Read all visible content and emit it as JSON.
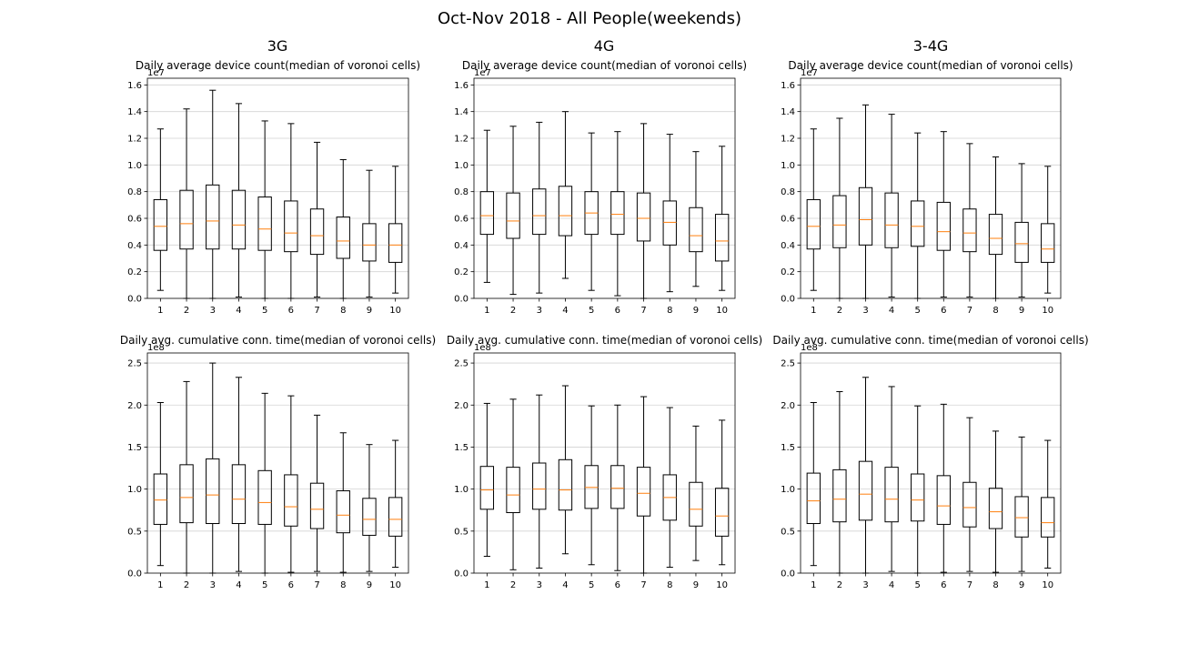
{
  "figure": {
    "title": "Oct-Nov 2018 - All People(weekends)",
    "column_titles": [
      "3G",
      "4G",
      "3-4G"
    ]
  },
  "chart_data": [
    {
      "type": "box",
      "column": "3G",
      "title": "Daily average device count(median of voronoi cells)",
      "offset_label": "1e7",
      "categories": [
        "1",
        "2",
        "3",
        "4",
        "5",
        "6",
        "7",
        "8",
        "9",
        "10"
      ],
      "ylim": [
        0,
        1.65
      ],
      "yticks": [
        "0.0",
        "0.2",
        "0.4",
        "0.6",
        "0.8",
        "1.0",
        "1.2",
        "1.4",
        "1.6"
      ],
      "grid": "y",
      "boxes": [
        {
          "whislo": 0.06,
          "q1": 0.36,
          "med": 0.54,
          "q3": 0.74,
          "whishi": 1.27
        },
        {
          "whislo": 0.0,
          "q1": 0.37,
          "med": 0.56,
          "q3": 0.81,
          "whishi": 1.42
        },
        {
          "whislo": 0.0,
          "q1": 0.37,
          "med": 0.58,
          "q3": 0.85,
          "whishi": 1.56
        },
        {
          "whislo": 0.01,
          "q1": 0.37,
          "med": 0.55,
          "q3": 0.81,
          "whishi": 1.46
        },
        {
          "whislo": 0.0,
          "q1": 0.36,
          "med": 0.52,
          "q3": 0.76,
          "whishi": 1.33
        },
        {
          "whislo": 0.0,
          "q1": 0.35,
          "med": 0.49,
          "q3": 0.73,
          "whishi": 1.31
        },
        {
          "whislo": 0.01,
          "q1": 0.33,
          "med": 0.47,
          "q3": 0.67,
          "whishi": 1.17
        },
        {
          "whislo": 0.0,
          "q1": 0.3,
          "med": 0.43,
          "q3": 0.61,
          "whishi": 1.04
        },
        {
          "whislo": 0.01,
          "q1": 0.28,
          "med": 0.4,
          "q3": 0.56,
          "whishi": 0.96
        },
        {
          "whislo": 0.04,
          "q1": 0.27,
          "med": 0.4,
          "q3": 0.56,
          "whishi": 0.99
        }
      ]
    },
    {
      "type": "box",
      "column": "4G",
      "title": "Daily average device count(median of voronoi cells)",
      "offset_label": "1e7",
      "categories": [
        "1",
        "2",
        "3",
        "4",
        "5",
        "6",
        "7",
        "8",
        "9",
        "10"
      ],
      "ylim": [
        0,
        1.65
      ],
      "yticks": [
        "0.0",
        "0.2",
        "0.4",
        "0.6",
        "0.8",
        "1.0",
        "1.2",
        "1.4",
        "1.6"
      ],
      "grid": "y",
      "boxes": [
        {
          "whislo": 0.12,
          "q1": 0.48,
          "med": 0.62,
          "q3": 0.8,
          "whishi": 1.26
        },
        {
          "whislo": 0.03,
          "q1": 0.45,
          "med": 0.58,
          "q3": 0.79,
          "whishi": 1.29
        },
        {
          "whislo": 0.04,
          "q1": 0.48,
          "med": 0.62,
          "q3": 0.82,
          "whishi": 1.32
        },
        {
          "whislo": 0.15,
          "q1": 0.47,
          "med": 0.62,
          "q3": 0.84,
          "whishi": 1.4
        },
        {
          "whislo": 0.06,
          "q1": 0.48,
          "med": 0.64,
          "q3": 0.8,
          "whishi": 1.24
        },
        {
          "whislo": 0.02,
          "q1": 0.48,
          "med": 0.63,
          "q3": 0.8,
          "whishi": 1.25
        },
        {
          "whislo": 0.0,
          "q1": 0.43,
          "med": 0.6,
          "q3": 0.79,
          "whishi": 1.31
        },
        {
          "whislo": 0.05,
          "q1": 0.4,
          "med": 0.57,
          "q3": 0.73,
          "whishi": 1.23
        },
        {
          "whislo": 0.09,
          "q1": 0.35,
          "med": 0.47,
          "q3": 0.68,
          "whishi": 1.1
        },
        {
          "whislo": 0.06,
          "q1": 0.28,
          "med": 0.43,
          "q3": 0.63,
          "whishi": 1.14
        }
      ]
    },
    {
      "type": "box",
      "column": "3-4G",
      "title": "Daily average device count(median of voronoi cells)",
      "offset_label": "1e7",
      "categories": [
        "1",
        "2",
        "3",
        "4",
        "5",
        "6",
        "7",
        "8",
        "9",
        "10"
      ],
      "ylim": [
        0,
        1.65
      ],
      "yticks": [
        "0.0",
        "0.2",
        "0.4",
        "0.6",
        "0.8",
        "1.0",
        "1.2",
        "1.4",
        "1.6"
      ],
      "grid": "y",
      "boxes": [
        {
          "whislo": 0.06,
          "q1": 0.37,
          "med": 0.54,
          "q3": 0.74,
          "whishi": 1.27
        },
        {
          "whislo": 0.0,
          "q1": 0.38,
          "med": 0.55,
          "q3": 0.77,
          "whishi": 1.35
        },
        {
          "whislo": 0.0,
          "q1": 0.4,
          "med": 0.59,
          "q3": 0.83,
          "whishi": 1.45
        },
        {
          "whislo": 0.01,
          "q1": 0.38,
          "med": 0.55,
          "q3": 0.79,
          "whishi": 1.38
        },
        {
          "whislo": 0.0,
          "q1": 0.39,
          "med": 0.54,
          "q3": 0.73,
          "whishi": 1.24
        },
        {
          "whislo": 0.01,
          "q1": 0.36,
          "med": 0.5,
          "q3": 0.72,
          "whishi": 1.25
        },
        {
          "whislo": 0.01,
          "q1": 0.35,
          "med": 0.49,
          "q3": 0.67,
          "whishi": 1.16
        },
        {
          "whislo": 0.0,
          "q1": 0.33,
          "med": 0.45,
          "q3": 0.63,
          "whishi": 1.06
        },
        {
          "whislo": 0.01,
          "q1": 0.27,
          "med": 0.41,
          "q3": 0.57,
          "whishi": 1.01
        },
        {
          "whislo": 0.04,
          "q1": 0.27,
          "med": 0.37,
          "q3": 0.56,
          "whishi": 0.99
        }
      ]
    },
    {
      "type": "box",
      "column": "3G",
      "title": "Daily avg. cumulative conn. time(median of voronoi cells)",
      "offset_label": "1e8",
      "categories": [
        "1",
        "2",
        "3",
        "4",
        "5",
        "6",
        "7",
        "8",
        "9",
        "10"
      ],
      "ylim": [
        0,
        2.62
      ],
      "yticks": [
        "0.0",
        "0.5",
        "1.0",
        "1.5",
        "2.0",
        "2.5"
      ],
      "grid": "y",
      "boxes": [
        {
          "whislo": 0.09,
          "q1": 0.58,
          "med": 0.87,
          "q3": 1.18,
          "whishi": 2.03
        },
        {
          "whislo": 0.0,
          "q1": 0.6,
          "med": 0.9,
          "q3": 1.29,
          "whishi": 2.28
        },
        {
          "whislo": 0.0,
          "q1": 0.59,
          "med": 0.93,
          "q3": 1.36,
          "whishi": 2.5
        },
        {
          "whislo": 0.02,
          "q1": 0.59,
          "med": 0.88,
          "q3": 1.29,
          "whishi": 2.33
        },
        {
          "whislo": 0.0,
          "q1": 0.58,
          "med": 0.84,
          "q3": 1.22,
          "whishi": 2.14
        },
        {
          "whislo": 0.01,
          "q1": 0.56,
          "med": 0.79,
          "q3": 1.17,
          "whishi": 2.11
        },
        {
          "whislo": 0.02,
          "q1": 0.53,
          "med": 0.76,
          "q3": 1.07,
          "whishi": 1.88
        },
        {
          "whislo": 0.01,
          "q1": 0.48,
          "med": 0.69,
          "q3": 0.98,
          "whishi": 1.67
        },
        {
          "whislo": 0.02,
          "q1": 0.45,
          "med": 0.64,
          "q3": 0.89,
          "whishi": 1.53
        },
        {
          "whislo": 0.07,
          "q1": 0.44,
          "med": 0.64,
          "q3": 0.9,
          "whishi": 1.58
        }
      ]
    },
    {
      "type": "box",
      "column": "4G",
      "title": "Daily avg. cumulative conn. time(median of voronoi cells)",
      "offset_label": "1e8",
      "categories": [
        "1",
        "2",
        "3",
        "4",
        "5",
        "6",
        "7",
        "8",
        "9",
        "10"
      ],
      "ylim": [
        0,
        2.62
      ],
      "yticks": [
        "0.0",
        "0.5",
        "1.0",
        "1.5",
        "2.0",
        "2.5"
      ],
      "grid": "y",
      "boxes": [
        {
          "whislo": 0.2,
          "q1": 0.76,
          "med": 0.99,
          "q3": 1.27,
          "whishi": 2.02
        },
        {
          "whislo": 0.04,
          "q1": 0.72,
          "med": 0.93,
          "q3": 1.26,
          "whishi": 2.07
        },
        {
          "whislo": 0.06,
          "q1": 0.76,
          "med": 1.0,
          "q3": 1.31,
          "whishi": 2.12
        },
        {
          "whislo": 0.23,
          "q1": 0.75,
          "med": 0.99,
          "q3": 1.35,
          "whishi": 2.23
        },
        {
          "whislo": 0.1,
          "q1": 0.77,
          "med": 1.02,
          "q3": 1.28,
          "whishi": 1.99
        },
        {
          "whislo": 0.03,
          "q1": 0.77,
          "med": 1.01,
          "q3": 1.28,
          "whishi": 2.0
        },
        {
          "whislo": 0.0,
          "q1": 0.68,
          "med": 0.95,
          "q3": 1.26,
          "whishi": 2.1
        },
        {
          "whislo": 0.07,
          "q1": 0.63,
          "med": 0.9,
          "q3": 1.17,
          "whishi": 1.97
        },
        {
          "whislo": 0.15,
          "q1": 0.56,
          "med": 0.76,
          "q3": 1.08,
          "whishi": 1.75
        },
        {
          "whislo": 0.1,
          "q1": 0.44,
          "med": 0.68,
          "q3": 1.01,
          "whishi": 1.82
        }
      ]
    },
    {
      "type": "box",
      "column": "3-4G",
      "title": "Daily avg. cumulative conn. time(median of voronoi cells)",
      "offset_label": "1e8",
      "categories": [
        "1",
        "2",
        "3",
        "4",
        "5",
        "6",
        "7",
        "8",
        "9",
        "10"
      ],
      "ylim": [
        0,
        2.62
      ],
      "yticks": [
        "0.0",
        "0.5",
        "1.0",
        "1.5",
        "2.0",
        "2.5"
      ],
      "grid": "y",
      "boxes": [
        {
          "whislo": 0.09,
          "q1": 0.59,
          "med": 0.86,
          "q3": 1.19,
          "whishi": 2.03
        },
        {
          "whislo": 0.0,
          "q1": 0.61,
          "med": 0.88,
          "q3": 1.23,
          "whishi": 2.16
        },
        {
          "whislo": 0.0,
          "q1": 0.63,
          "med": 0.94,
          "q3": 1.33,
          "whishi": 2.33
        },
        {
          "whislo": 0.02,
          "q1": 0.61,
          "med": 0.88,
          "q3": 1.26,
          "whishi": 2.22
        },
        {
          "whislo": 0.0,
          "q1": 0.62,
          "med": 0.87,
          "q3": 1.18,
          "whishi": 1.99
        },
        {
          "whislo": 0.01,
          "q1": 0.58,
          "med": 0.8,
          "q3": 1.16,
          "whishi": 2.01
        },
        {
          "whislo": 0.02,
          "q1": 0.55,
          "med": 0.78,
          "q3": 1.08,
          "whishi": 1.85
        },
        {
          "whislo": 0.01,
          "q1": 0.53,
          "med": 0.73,
          "q3": 1.01,
          "whishi": 1.69
        },
        {
          "whislo": 0.02,
          "q1": 0.43,
          "med": 0.66,
          "q3": 0.91,
          "whishi": 1.62
        },
        {
          "whislo": 0.06,
          "q1": 0.43,
          "med": 0.6,
          "q3": 0.9,
          "whishi": 1.58
        }
      ]
    }
  ]
}
